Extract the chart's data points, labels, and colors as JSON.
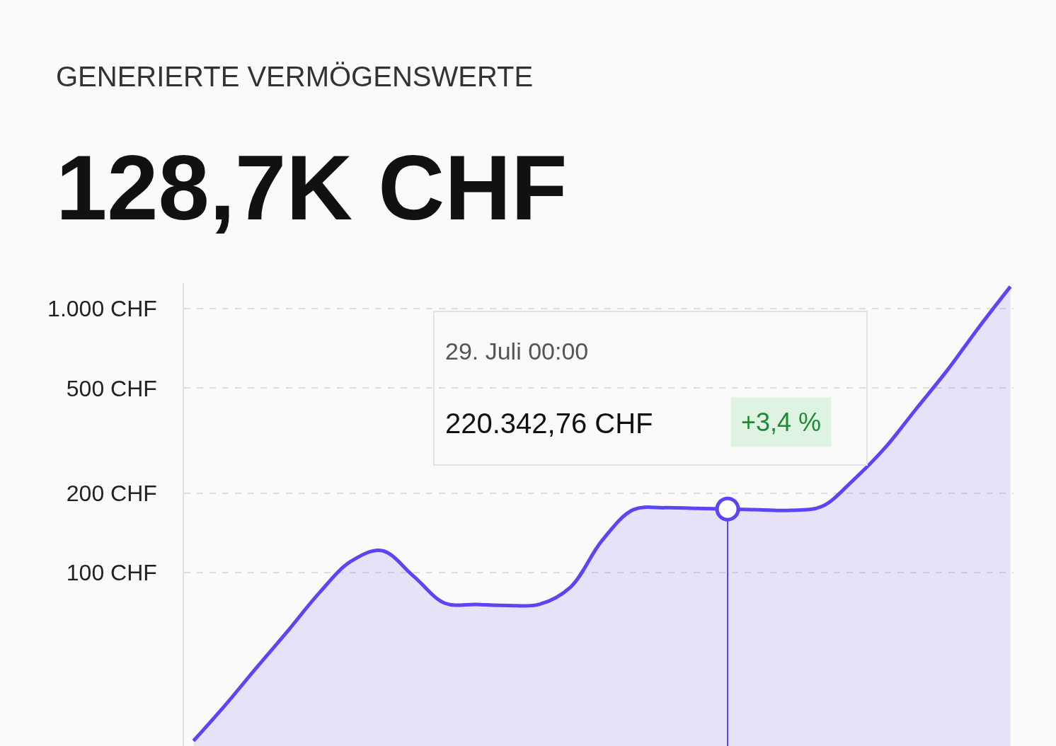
{
  "chart_data": {
    "type": "area",
    "title": "GENERIERTE VERMÖGENSWERTE",
    "subtitle": "128,7K CHF",
    "categories": [
      null,
      null,
      null,
      null,
      null,
      null,
      null,
      null,
      null,
      null,
      null,
      null,
      null,
      null,
      null,
      null,
      null,
      null,
      null,
      null,
      null,
      null,
      null,
      null,
      null,
      null,
      null
    ],
    "series": [
      {
        "color": "#5b45f5",
        "values": [
          23,
          31.3,
          43.5,
          60,
          83.6,
          110,
          121,
          97,
          76.5,
          75.7,
          75,
          75.7,
          88,
          132,
          173,
          176,
          175,
          174,
          173,
          172,
          178,
          224,
          296,
          417,
          586,
          851,
          1213
        ]
      },
      {
        "type": "scatter",
        "color": "#5b45f5",
        "marker": "circle",
        "values": [
          null,
          null,
          null,
          null,
          null,
          null,
          null,
          null,
          null,
          null,
          null,
          null,
          null,
          null,
          null,
          null,
          null,
          174,
          null,
          null,
          null,
          null,
          null,
          null,
          null,
          null,
          null
        ]
      }
    ],
    "log": true,
    "ylim": [
      22,
      1250
    ],
    "yticks": [
      {
        "value": 100,
        "label": "100 CHF"
      },
      {
        "value": 200,
        "label": "200 CHF"
      },
      {
        "value": 500,
        "label": "500 CHF"
      },
      {
        "value": 1000,
        "label": "1.000 CHF"
      }
    ],
    "grid": "y",
    "tick_labels": "y",
    "annotations": [
      "29. Juli 00:00",
      "220.342,76 CHF",
      "+3,4 %"
    ]
  }
}
